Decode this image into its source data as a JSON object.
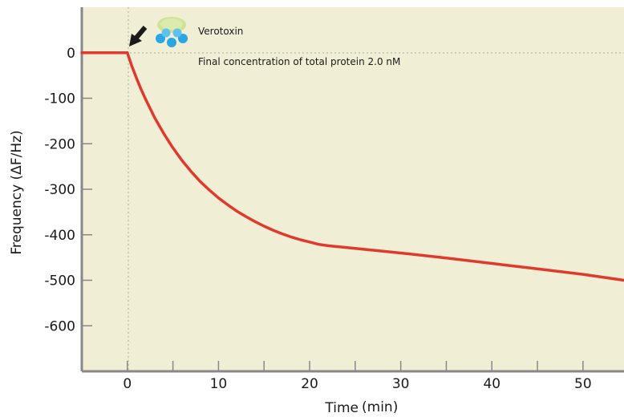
{
  "chart_data": {
    "type": "line",
    "xlabel": "Time",
    "xlabel_unit": "(min)",
    "ylabel": "Frequency (ΔF/Hz)",
    "xlim": [
      -5,
      54.5
    ],
    "ylim": [
      -700,
      100
    ],
    "x_ticks": [
      0,
      10,
      20,
      30,
      40,
      50
    ],
    "y_ticks": [
      0,
      -100,
      -200,
      -300,
      -400,
      -500,
      -600
    ],
    "grid": false,
    "reference_lines": {
      "x": 0,
      "y": 0,
      "style": "dotted"
    },
    "series": [
      {
        "color": "#e03a2e",
        "x": [
          -5,
          -4,
          -3,
          -2,
          -1,
          0,
          0.3,
          0.5,
          1,
          1.5,
          2,
          3,
          4,
          5,
          6,
          7,
          8,
          9,
          10,
          11,
          12,
          13,
          14,
          15,
          16,
          17,
          18,
          19,
          20,
          21,
          22,
          25,
          30,
          35,
          40,
          45,
          50,
          54.5
        ],
        "y": [
          0,
          0,
          0,
          0,
          0,
          0,
          -18,
          -30,
          -56,
          -80,
          -102,
          -143,
          -178,
          -209,
          -237,
          -261,
          -283,
          -302,
          -319,
          -334,
          -348,
          -360,
          -371,
          -381,
          -390,
          -398,
          -405,
          -411,
          -416,
          -421,
          -424,
          -430,
          -440,
          -451,
          -463,
          -475,
          -487,
          -500
        ]
      }
    ],
    "annotations": [
      {
        "text": "Verotoxin",
        "icon": "molecule-icon"
      },
      {
        "text": "Final concentration of total protein 2.0 nM"
      },
      {
        "icon": "arrow-icon",
        "points_to_x": 0
      }
    ]
  },
  "colors": {
    "plot_background": "#f0eed5",
    "axis": "#888888",
    "line": "#e03a2e"
  }
}
